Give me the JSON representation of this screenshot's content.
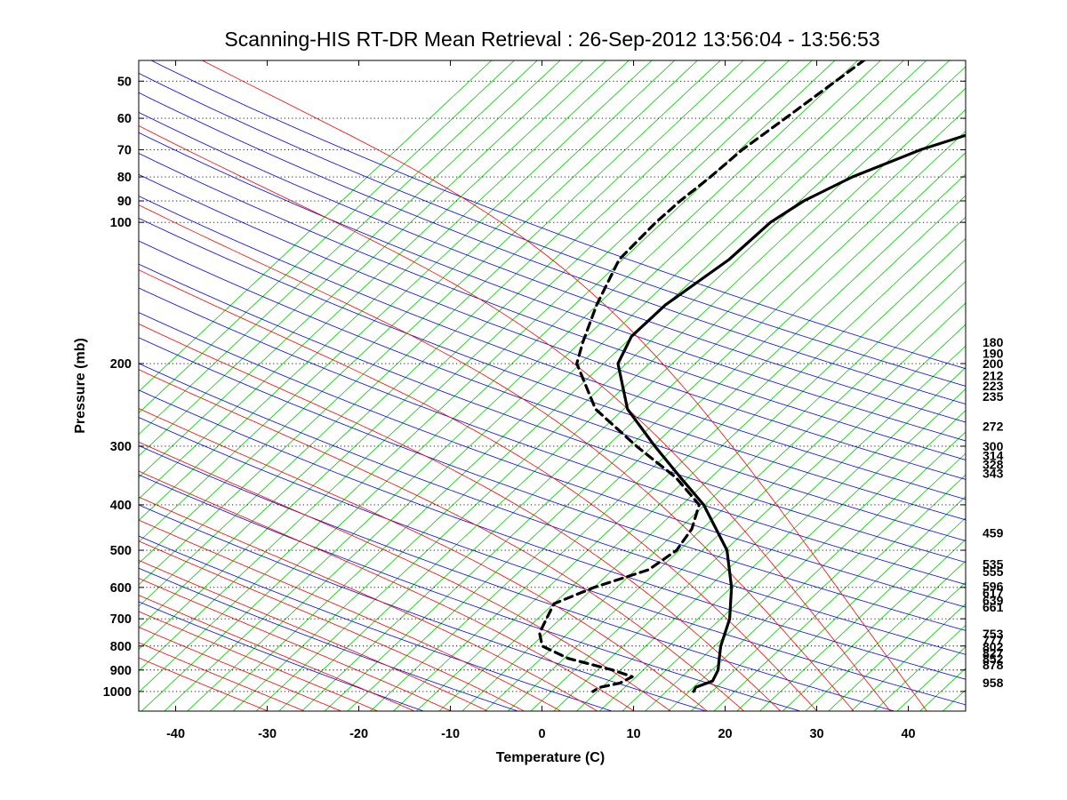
{
  "chart_data": {
    "type": "line",
    "subtype": "skew-t log-p sounding diagram",
    "title": "Scanning-HIS RT-DR Mean Retrieval : 26-Sep-2012 13:56:04 - 13:56:53",
    "xlabel": "Temperature (C)",
    "ylabel": "Pressure (mb)",
    "xlim": [
      -45,
      45
    ],
    "ylim": [
      1080,
      45
    ],
    "y_scale": "log",
    "x_ticks": [
      -40,
      -30,
      -20,
      -10,
      0,
      10,
      20,
      30,
      40
    ],
    "y_ticks": [
      50,
      60,
      70,
      80,
      90,
      100,
      200,
      300,
      400,
      500,
      600,
      700,
      800,
      900,
      1000
    ],
    "gridlines": "horizontal dotted at y ticks",
    "background_lines": {
      "dry_adiabats_color": "#0000ff",
      "moist_adiabats_color": "#ff0000",
      "mixing_ratio_color": "#00cc00"
    },
    "series": [
      {
        "style": "solid",
        "color": "#000000",
        "points": [
          {
            "p": 45,
            "t": 34.5
          },
          {
            "p": 50,
            "t": 30
          },
          {
            "p": 60,
            "t": 20
          },
          {
            "p": 70,
            "t": 11
          },
          {
            "p": 80,
            "t": 5
          },
          {
            "p": 90,
            "t": 1
          },
          {
            "p": 100,
            "t": -1.5
          },
          {
            "p": 120,
            "t": -4
          },
          {
            "p": 150,
            "t": -8.5
          },
          {
            "p": 175,
            "t": -10.5
          },
          {
            "p": 200,
            "t": -10.5
          },
          {
            "p": 250,
            "t": -7
          },
          {
            "p": 300,
            "t": -2
          },
          {
            "p": 350,
            "t": 2.5
          },
          {
            "p": 400,
            "t": 6.5
          },
          {
            "p": 500,
            "t": 11.5
          },
          {
            "p": 600,
            "t": 14
          },
          {
            "p": 700,
            "t": 15.5
          },
          {
            "p": 800,
            "t": 16
          },
          {
            "p": 850,
            "t": 16.5
          },
          {
            "p": 900,
            "t": 17
          },
          {
            "p": 950,
            "t": 17
          },
          {
            "p": 980,
            "t": 15.5
          },
          {
            "p": 1000,
            "t": 15.5
          }
        ]
      },
      {
        "style": "dashed",
        "color": "#000000",
        "points": [
          {
            "p": 45,
            "t": 0
          },
          {
            "p": 50,
            "t": -2
          },
          {
            "p": 60,
            "t": -5.5
          },
          {
            "p": 70,
            "t": -8.5
          },
          {
            "p": 80,
            "t": -10.5
          },
          {
            "p": 90,
            "t": -12.5
          },
          {
            "p": 100,
            "t": -14
          },
          {
            "p": 120,
            "t": -16
          },
          {
            "p": 150,
            "t": -16
          },
          {
            "p": 180,
            "t": -15.5
          },
          {
            "p": 200,
            "t": -15
          },
          {
            "p": 250,
            "t": -10.5
          },
          {
            "p": 300,
            "t": -4
          },
          {
            "p": 350,
            "t": 2
          },
          {
            "p": 400,
            "t": 6
          },
          {
            "p": 450,
            "t": 6.5
          },
          {
            "p": 500,
            "t": 6
          },
          {
            "p": 550,
            "t": 4
          },
          {
            "p": 600,
            "t": -1
          },
          {
            "p": 650,
            "t": -4.5
          },
          {
            "p": 700,
            "t": -4.5
          },
          {
            "p": 750,
            "t": -4.5
          },
          {
            "p": 800,
            "t": -3.5
          },
          {
            "p": 850,
            "t": 0
          },
          {
            "p": 900,
            "t": 5.5
          },
          {
            "p": 930,
            "t": 8
          },
          {
            "p": 960,
            "t": 7
          },
          {
            "p": 980,
            "t": 5
          },
          {
            "p": 1000,
            "t": 4.5
          }
        ]
      }
    ],
    "right_labels": [
      {
        "p": 180,
        "label": "180"
      },
      {
        "p": 190,
        "label": "190"
      },
      {
        "p": 200,
        "label": "200"
      },
      {
        "p": 212,
        "label": "212"
      },
      {
        "p": 223,
        "label": "223"
      },
      {
        "p": 235,
        "label": "235"
      },
      {
        "p": 272,
        "label": "272"
      },
      {
        "p": 300,
        "label": "300"
      },
      {
        "p": 314,
        "label": "314"
      },
      {
        "p": 328,
        "label": "328"
      },
      {
        "p": 343,
        "label": "343"
      },
      {
        "p": 459,
        "label": "459"
      },
      {
        "p": 535,
        "label": "535"
      },
      {
        "p": 555,
        "label": "555"
      },
      {
        "p": 596,
        "label": "596"
      },
      {
        "p": 617,
        "label": "617"
      },
      {
        "p": 639,
        "label": "639"
      },
      {
        "p": 661,
        "label": "661"
      },
      {
        "p": 753,
        "label": "753"
      },
      {
        "p": 777,
        "label": "777"
      },
      {
        "p": 802,
        "label": "802"
      },
      {
        "p": 827,
        "label": "827"
      },
      {
        "p": 852,
        "label": "852"
      },
      {
        "p": 878,
        "label": "878"
      },
      {
        "p": 958,
        "label": "958"
      }
    ]
  }
}
